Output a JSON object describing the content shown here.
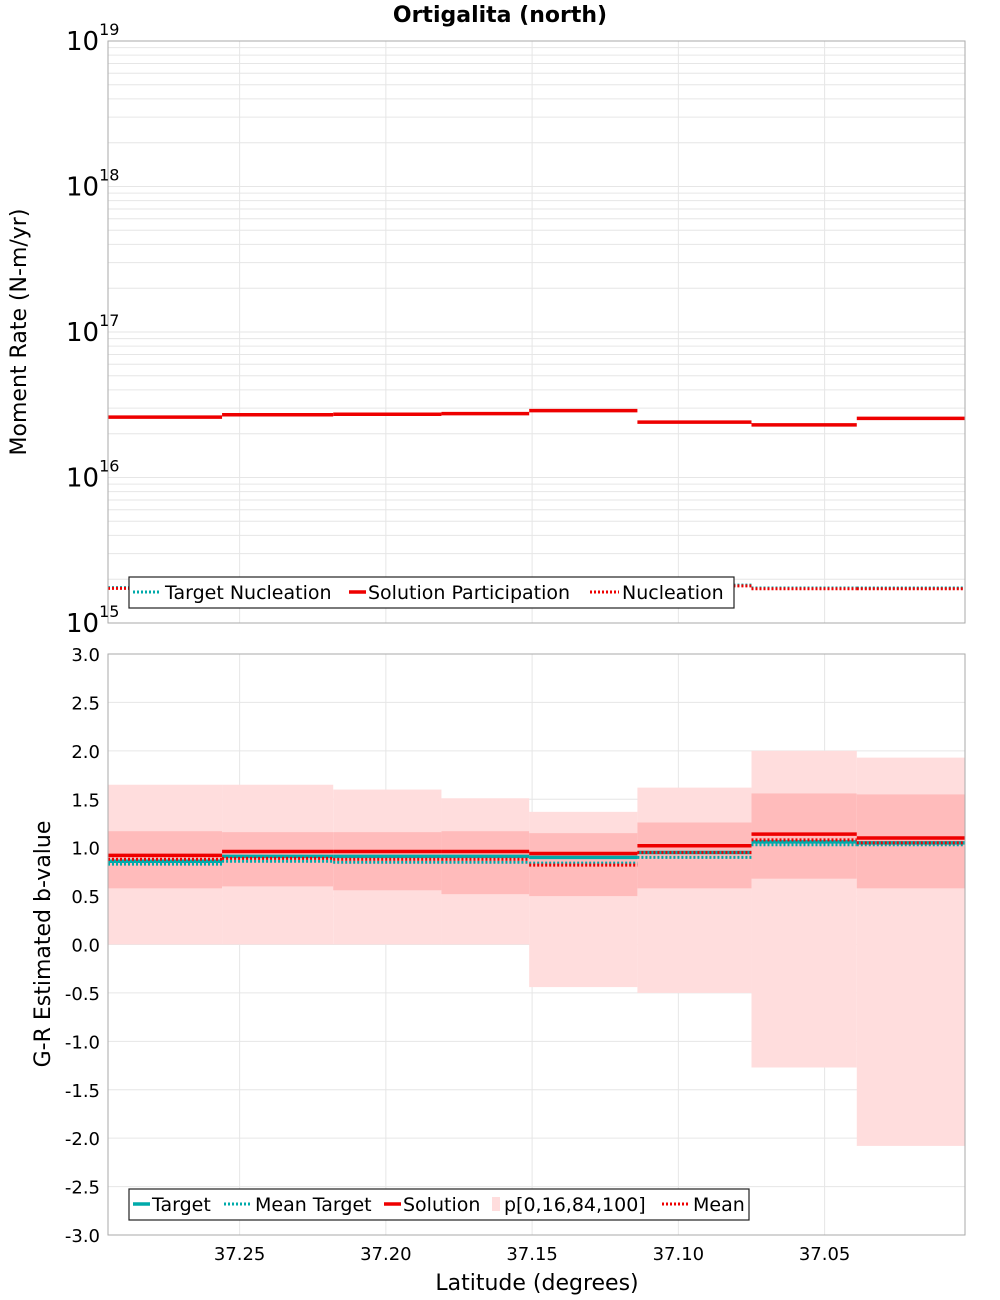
{
  "title": "Ortigalita (north)",
  "colors": {
    "target": "#00aaaa",
    "solution": "#ee0000",
    "band_outer": "#ffdddd",
    "band_inner": "#ffbbbb",
    "grid": "#e6e6e6",
    "frame": "#aaaaaa"
  },
  "chart_data": [
    {
      "type": "line",
      "style": "step",
      "scale": "log",
      "ylabel": "Moment Rate (N-m/yr)",
      "xlim": [
        37.295,
        37.002
      ],
      "ylim": [
        1000000000000000.0,
        1e+19
      ],
      "x_edges": [
        37.295,
        37.256,
        37.218,
        37.181,
        37.151,
        37.114,
        37.075,
        37.039,
        37.002
      ],
      "yticks": [
        {
          "base": "10",
          "exp": "15"
        },
        {
          "base": "10",
          "exp": "16"
        },
        {
          "base": "10",
          "exp": "17"
        },
        {
          "base": "10",
          "exp": "18"
        },
        {
          "base": "10",
          "exp": "19"
        }
      ],
      "series": [
        {
          "name": "Target Nucleation",
          "style": "dotted",
          "color": "#00aaaa",
          "values": [
            1750000000000000.0,
            1780000000000000.0,
            1800000000000000.0,
            1820000000000000.0,
            1840000000000000.0,
            1820000000000000.0,
            1740000000000000.0,
            1740000000000000.0
          ]
        },
        {
          "name": "Solution Participation",
          "style": "solid",
          "color": "#ee0000",
          "values": [
            2.6e+16,
            2.7e+16,
            2.72e+16,
            2.75e+16,
            2.88e+16,
            2.4e+16,
            2.3e+16,
            2.55e+16
          ]
        },
        {
          "name": "Nucleation",
          "style": "dotted",
          "color": "#ee0000",
          "values": [
            1730000000000000.0,
            1760000000000000.0,
            1780000000000000.0,
            1800000000000000.0,
            1820000000000000.0,
            1800000000000000.0,
            1720000000000000.0,
            1720000000000000.0
          ]
        }
      ],
      "legend": [
        "Target Nucleation",
        "Solution Participation",
        "Nucleation"
      ]
    },
    {
      "type": "line",
      "style": "step",
      "ylabel": "G-R Estimated b-value",
      "xlabel": "Latitude (degrees)",
      "xlim": [
        37.295,
        37.002
      ],
      "ylim": [
        -3.0,
        3.0
      ],
      "x_edges": [
        37.295,
        37.256,
        37.218,
        37.181,
        37.151,
        37.114,
        37.075,
        37.039,
        37.002
      ],
      "xticks": [
        "37.25",
        "37.20",
        "37.15",
        "37.10",
        "37.05"
      ],
      "xtick_values": [
        37.25,
        37.2,
        37.15,
        37.1,
        37.05
      ],
      "yticks": [
        "3.0",
        "2.5",
        "2.0",
        "1.5",
        "1.0",
        "0.5",
        "0.0",
        "-0.5",
        "-1.0",
        "-1.5",
        "-2.0",
        "-2.5",
        "-3.0"
      ],
      "ytick_values": [
        3.0,
        2.5,
        2.0,
        1.5,
        1.0,
        0.5,
        0.0,
        -0.5,
        -1.0,
        -1.5,
        -2.0,
        -2.5,
        -3.0
      ],
      "band": {
        "p0": [
          0.0,
          0.0,
          0.0,
          0.0,
          -0.44,
          -0.5,
          -1.27,
          -2.08
        ],
        "p16": [
          0.58,
          0.6,
          0.56,
          0.52,
          0.5,
          0.58,
          0.68,
          0.58
        ],
        "p84": [
          1.17,
          1.16,
          1.16,
          1.17,
          1.15,
          1.26,
          1.56,
          1.55
        ],
        "p100": [
          1.65,
          1.65,
          1.6,
          1.51,
          1.37,
          1.62,
          2.0,
          1.93
        ]
      },
      "series": [
        {
          "name": "Target",
          "style": "solid",
          "color": "#00aaaa",
          "values": [
            0.86,
            0.91,
            0.91,
            0.91,
            0.9,
            0.95,
            1.06,
            1.05
          ]
        },
        {
          "name": "Mean Target",
          "style": "dotted",
          "color": "#00aaaa",
          "values": [
            0.83,
            0.86,
            0.85,
            0.85,
            0.84,
            0.9,
            1.03,
            1.03
          ]
        },
        {
          "name": "Solution",
          "style": "solid",
          "color": "#ee0000",
          "values": [
            0.92,
            0.96,
            0.96,
            0.96,
            0.94,
            1.02,
            1.14,
            1.1
          ]
        },
        {
          "name": "Mean",
          "style": "dotted",
          "color": "#ee0000",
          "values": [
            0.88,
            0.89,
            0.88,
            0.88,
            0.82,
            0.95,
            1.08,
            1.05
          ]
        }
      ],
      "legend": [
        "Target",
        "Mean Target",
        "Solution",
        "p[0,16,84,100]",
        "Mean"
      ]
    }
  ]
}
